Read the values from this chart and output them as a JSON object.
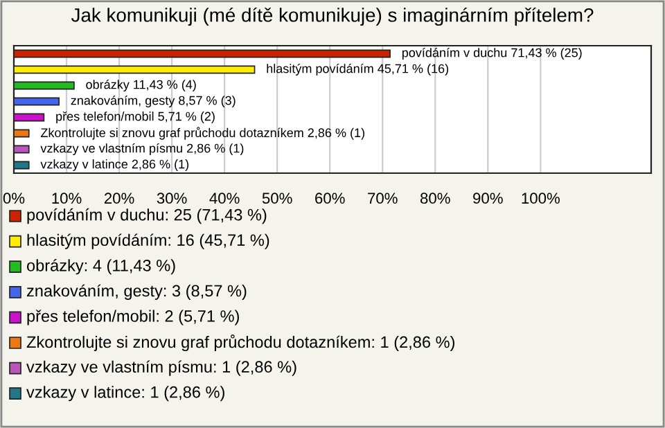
{
  "chart_data": {
    "type": "bar",
    "orientation": "horizontal",
    "title": "Jak komunikuji (mé dítě komunikuje) s imaginárním přítelem?",
    "categories": [
      null,
      null,
      null,
      null,
      null,
      null,
      null,
      null
    ],
    "values": [
      71.43,
      45.71,
      11.43,
      8.57,
      5.71,
      2.86,
      2.86,
      2.86
    ],
    "colors": [
      "#cc2200",
      "#ffee00",
      "#22bb22",
      "#4466ee",
      "#cc11cc",
      "#ee7711",
      "#bb55bb",
      "#227788"
    ],
    "value_labels": [
      "povídáním v duchu 71,43 % (25)",
      "hlasitým povídáním 45,71 % (16)",
      "obrázky 11,43 % (4)",
      "znakováním, gesty 8,57 % (3)",
      "přes telefon/mobil 5,71 % (2)",
      "Zkontrolujte si znovu graf průchodu dotazníkem 2,86 % (1)",
      "vzkazy ve vlastním písmu 2,86 % (1)",
      "vzkazy v latince 2,86 % (1)"
    ],
    "xlim": [
      0,
      121
    ],
    "xticks": [
      {
        "value": 0,
        "label": "0%"
      },
      {
        "value": 10,
        "label": "10%"
      },
      {
        "value": 20,
        "label": "20%"
      },
      {
        "value": 30,
        "label": "30%"
      },
      {
        "value": 40,
        "label": "40%"
      },
      {
        "value": 50,
        "label": "50%"
      },
      {
        "value": 60,
        "label": "60%"
      },
      {
        "value": 70,
        "label": "70%"
      },
      {
        "value": 80,
        "label": "80%"
      },
      {
        "value": 90,
        "label": "90%"
      },
      {
        "value": 100,
        "label": "100%"
      }
    ],
    "grid": "x",
    "tick_labels": "x",
    "annotations": [
      "povídáním v duchu: 25 (71,43 %)",
      "hlasitým povídáním: 16 (45,71 %)",
      "obrázky: 4 (11,43 %)",
      "znakováním, gesty: 3 (8,57 %)",
      "přes telefon/mobil: 2 (5,71 %)",
      "Zkontrolujte si znovu graf průchodu dotazníkem: 1 (2,86 %)",
      "vzkazy ve vlastním písmu: 1 (2,86 %)",
      "vzkazy v latince: 1 (2,86 %)"
    ]
  }
}
